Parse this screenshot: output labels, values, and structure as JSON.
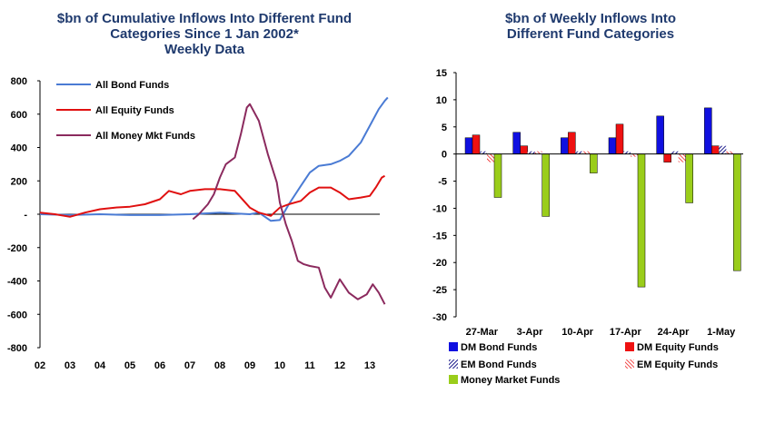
{
  "chart_data": [
    {
      "type": "line",
      "title": "$bn of Cumulative Inflows Into Different Fund Categories Since 1 Jan 2002* Weekly Data",
      "title_lines": [
        "$bn of Cumulative Inflows Into Different Fund",
        "Categories Since 1 Jan 2002*",
        "Weekly Data"
      ],
      "xlabel": "",
      "ylabel": "",
      "ylim": [
        -800,
        800
      ],
      "xlim": [
        2002,
        2013.7
      ],
      "y_ticks": [
        "800",
        "600",
        "400",
        "200",
        "-",
        "-200",
        "-400",
        "-600",
        "-800"
      ],
      "x_ticks": [
        "02",
        "03",
        "04",
        "05",
        "06",
        "07",
        "08",
        "09",
        "10",
        "11",
        "12",
        "13"
      ],
      "legend_position": "top-left",
      "grid": false,
      "series": [
        {
          "name": "All Bond Funds",
          "color": "#4a7bd4",
          "points": [
            [
              2002.0,
              0
            ],
            [
              2003.0,
              -5
            ],
            [
              2004.0,
              0
            ],
            [
              2005.0,
              -5
            ],
            [
              2006.0,
              -5
            ],
            [
              2007.0,
              0
            ],
            [
              2007.5,
              5
            ],
            [
              2008.0,
              10
            ],
            [
              2008.5,
              5
            ],
            [
              2009.0,
              0
            ],
            [
              2009.3,
              10
            ],
            [
              2009.7,
              -40
            ],
            [
              2010.0,
              -35
            ],
            [
              2010.3,
              60
            ],
            [
              2010.7,
              170
            ],
            [
              2011.0,
              250
            ],
            [
              2011.3,
              290
            ],
            [
              2011.7,
              300
            ],
            [
              2012.0,
              320
            ],
            [
              2012.3,
              350
            ],
            [
              2012.7,
              430
            ],
            [
              2013.0,
              530
            ],
            [
              2013.3,
              630
            ],
            [
              2013.5,
              680
            ],
            [
              2013.6,
              700
            ]
          ]
        },
        {
          "name": "All Equity Funds",
          "color": "#e01010",
          "points": [
            [
              2002.0,
              10
            ],
            [
              2002.5,
              0
            ],
            [
              2003.0,
              -15
            ],
            [
              2003.5,
              10
            ],
            [
              2004.0,
              30
            ],
            [
              2004.5,
              40
            ],
            [
              2005.0,
              45
            ],
            [
              2005.5,
              60
            ],
            [
              2006.0,
              90
            ],
            [
              2006.3,
              140
            ],
            [
              2006.7,
              120
            ],
            [
              2007.0,
              140
            ],
            [
              2007.5,
              150
            ],
            [
              2008.0,
              150
            ],
            [
              2008.5,
              140
            ],
            [
              2009.0,
              40
            ],
            [
              2009.3,
              10
            ],
            [
              2009.7,
              -10
            ],
            [
              2010.0,
              40
            ],
            [
              2010.3,
              60
            ],
            [
              2010.7,
              80
            ],
            [
              2011.0,
              130
            ],
            [
              2011.3,
              160
            ],
            [
              2011.7,
              160
            ],
            [
              2012.0,
              130
            ],
            [
              2012.3,
              90
            ],
            [
              2012.7,
              100
            ],
            [
              2013.0,
              110
            ],
            [
              2013.2,
              160
            ],
            [
              2013.4,
              220
            ],
            [
              2013.5,
              230
            ]
          ]
        },
        {
          "name": "All Money Mkt Funds",
          "color": "#8b2a5e",
          "points": [
            [
              2007.1,
              -30
            ],
            [
              2007.3,
              0
            ],
            [
              2007.6,
              60
            ],
            [
              2007.8,
              120
            ],
            [
              2008.0,
              220
            ],
            [
              2008.2,
              300
            ],
            [
              2008.5,
              340
            ],
            [
              2008.7,
              480
            ],
            [
              2008.9,
              640
            ],
            [
              2009.0,
              660
            ],
            [
              2009.3,
              560
            ],
            [
              2009.6,
              360
            ],
            [
              2009.9,
              190
            ],
            [
              2010.0,
              70
            ],
            [
              2010.2,
              -60
            ],
            [
              2010.4,
              -160
            ],
            [
              2010.6,
              -280
            ],
            [
              2010.8,
              -300
            ],
            [
              2011.0,
              -310
            ],
            [
              2011.3,
              -320
            ],
            [
              2011.5,
              -440
            ],
            [
              2011.7,
              -500
            ],
            [
              2012.0,
              -390
            ],
            [
              2012.3,
              -470
            ],
            [
              2012.6,
              -510
            ],
            [
              2012.9,
              -480
            ],
            [
              2013.1,
              -420
            ],
            [
              2013.3,
              -470
            ],
            [
              2013.5,
              -540
            ]
          ]
        }
      ]
    },
    {
      "type": "bar",
      "title": "$bn of Weekly Inflows Into Different Fund Categories",
      "title_lines": [
        "$bn of Weekly Inflows Into",
        "Different Fund Categories"
      ],
      "xlabel": "",
      "ylabel": "",
      "ylim": [
        -30,
        15
      ],
      "y_ticks": [
        15,
        10,
        5,
        0,
        -5,
        -10,
        -15,
        -20,
        -25,
        -30
      ],
      "categories": [
        "27-Mar",
        "3-Apr",
        "10-Apr",
        "17-Apr",
        "24-Apr",
        "1-May"
      ],
      "legend_position": "bottom",
      "grid": false,
      "series": [
        {
          "name": "DM Bond Funds",
          "color": "#1010e0",
          "pattern": "solid",
          "values": [
            3,
            4,
            3,
            3,
            7,
            8.5
          ]
        },
        {
          "name": "DM Equity Funds",
          "color": "#ee1111",
          "pattern": "solid",
          "values": [
            3.5,
            1.5,
            4,
            5.5,
            -1.5,
            1.5
          ]
        },
        {
          "name": "EM Bond Funds",
          "color": "#1a1a8a",
          "pattern": "hatch",
          "values": [
            0.5,
            0.5,
            0.5,
            0.5,
            0.5,
            1.5
          ]
        },
        {
          "name": "EM Equity Funds",
          "color": "#ee1111",
          "pattern": "hatch",
          "values": [
            -1.5,
            0.5,
            0.5,
            -0.5,
            -1.5,
            0.5
          ]
        },
        {
          "name": "Money Market Funds",
          "color": "#9acd1a",
          "pattern": "solid",
          "values": [
            -8,
            -11.5,
            -3.5,
            -24.5,
            -9,
            -21.5
          ]
        }
      ]
    }
  ]
}
